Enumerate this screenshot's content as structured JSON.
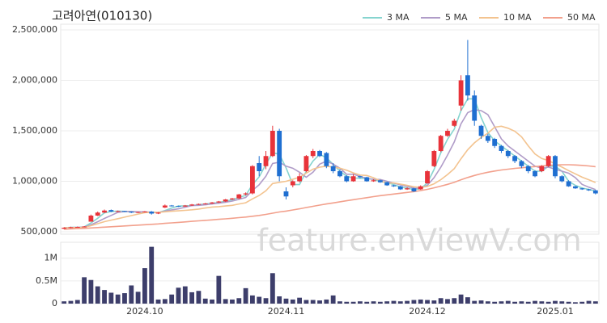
{
  "chart_data": {
    "type": "candlestick",
    "title": "고려아연(010130)",
    "watermark": "feature.enViewV.com",
    "up_color": "#e8333a",
    "down_color": "#1f6fd1",
    "volume_color": "#3d3e6b",
    "grid": true,
    "legend": "top-right",
    "categories": [
      null,
      null,
      null,
      null,
      null,
      null,
      null,
      null,
      null,
      null,
      null,
      null,
      "2024.10",
      null,
      null,
      null,
      null,
      null,
      null,
      null,
      null,
      null,
      null,
      null,
      null,
      null,
      null,
      null,
      null,
      null,
      null,
      null,
      null,
      "2024.11",
      null,
      null,
      null,
      null,
      null,
      null,
      null,
      null,
      null,
      null,
      null,
      null,
      null,
      null,
      null,
      null,
      null,
      null,
      null,
      null,
      "2024.12",
      null,
      null,
      null,
      null,
      null,
      null,
      null,
      null,
      null,
      null,
      null,
      null,
      null,
      null,
      null,
      null,
      null,
      null,
      "2025.01",
      null,
      null,
      null,
      null,
      null,
      null
    ],
    "ohlc": [
      [
        530000,
        545000,
        525000,
        540000
      ],
      [
        540000,
        550000,
        535000,
        545000
      ],
      [
        545000,
        552000,
        540000,
        548000
      ],
      [
        548000,
        556000,
        545000,
        552000
      ],
      [
        600000,
        670000,
        600000,
        660000
      ],
      [
        660000,
        700000,
        655000,
        690000
      ],
      [
        690000,
        720000,
        685000,
        710000
      ],
      [
        715000,
        720000,
        695000,
        700000
      ],
      [
        700000,
        710000,
        695000,
        705000
      ],
      [
        705000,
        708000,
        695000,
        700000
      ],
      [
        700000,
        702000,
        685000,
        690000
      ],
      [
        690000,
        700000,
        685000,
        695000
      ],
      [
        695000,
        705000,
        690000,
        700000
      ],
      [
        700000,
        705000,
        670000,
        680000
      ],
      [
        680000,
        695000,
        675000,
        690000
      ],
      [
        740000,
        770000,
        735000,
        760000
      ],
      [
        760000,
        765000,
        750000,
        755000
      ],
      [
        755000,
        758000,
        745000,
        750000
      ],
      [
        750000,
        765000,
        748000,
        760000
      ],
      [
        760000,
        775000,
        755000,
        770000
      ],
      [
        770000,
        780000,
        765000,
        775000
      ],
      [
        775000,
        785000,
        770000,
        780000
      ],
      [
        780000,
        795000,
        775000,
        790000
      ],
      [
        790000,
        805000,
        785000,
        800000
      ],
      [
        800000,
        825000,
        795000,
        820000
      ],
      [
        820000,
        835000,
        815000,
        830000
      ],
      [
        830000,
        875000,
        825000,
        870000
      ],
      [
        870000,
        890000,
        860000,
        880000
      ],
      [
        880000,
        1160000,
        870000,
        1150000
      ],
      [
        1180000,
        1250000,
        1050000,
        1100000
      ],
      [
        1150000,
        1300000,
        1120000,
        1250000
      ],
      [
        1250000,
        1550000,
        1240000,
        1500000
      ],
      [
        1500000,
        1520000,
        1000000,
        1050000
      ],
      [
        900000,
        940000,
        820000,
        850000
      ],
      [
        960000,
        1010000,
        940000,
        1000000
      ],
      [
        1000000,
        1080000,
        990000,
        1050000
      ],
      [
        1100000,
        1260000,
        1090000,
        1250000
      ],
      [
        1250000,
        1320000,
        1230000,
        1300000
      ],
      [
        1300000,
        1310000,
        1240000,
        1250000
      ],
      [
        1280000,
        1290000,
        1130000,
        1150000
      ],
      [
        1150000,
        1180000,
        1080000,
        1100000
      ],
      [
        1100000,
        1120000,
        1040000,
        1050000
      ],
      [
        1050000,
        1060000,
        990000,
        1000000
      ],
      [
        1000000,
        1070000,
        995000,
        1050000
      ],
      [
        1050000,
        1055000,
        1030000,
        1040000
      ],
      [
        1040000,
        1045000,
        995000,
        1000000
      ],
      [
        1000000,
        1020000,
        995000,
        1010000
      ],
      [
        1010000,
        1015000,
        985000,
        990000
      ],
      [
        990000,
        995000,
        955000,
        960000
      ],
      [
        960000,
        965000,
        945000,
        950000
      ],
      [
        950000,
        955000,
        915000,
        920000
      ],
      [
        920000,
        940000,
        915000,
        930000
      ],
      [
        930000,
        935000,
        895000,
        900000
      ],
      [
        920000,
        960000,
        915000,
        950000
      ],
      [
        980000,
        1110000,
        975000,
        1100000
      ],
      [
        1150000,
        1310000,
        1140000,
        1300000
      ],
      [
        1300000,
        1460000,
        1290000,
        1450000
      ],
      [
        1450000,
        1520000,
        1440000,
        1500000
      ],
      [
        1550000,
        1620000,
        1540000,
        1600000
      ],
      [
        1750000,
        2050000,
        1700000,
        2000000
      ],
      [
        2050000,
        2400000,
        1800000,
        1850000
      ],
      [
        1850000,
        1900000,
        1550000,
        1600000
      ],
      [
        1550000,
        1560000,
        1420000,
        1450000
      ],
      [
        1450000,
        1470000,
        1380000,
        1400000
      ],
      [
        1420000,
        1430000,
        1330000,
        1350000
      ],
      [
        1350000,
        1360000,
        1280000,
        1300000
      ],
      [
        1300000,
        1310000,
        1230000,
        1250000
      ],
      [
        1250000,
        1260000,
        1180000,
        1200000
      ],
      [
        1200000,
        1210000,
        1130000,
        1150000
      ],
      [
        1150000,
        1160000,
        1080000,
        1100000
      ],
      [
        1100000,
        1110000,
        1040000,
        1050000
      ],
      [
        1100000,
        1160000,
        1090000,
        1150000
      ],
      [
        1150000,
        1260000,
        1140000,
        1250000
      ],
      [
        1250000,
        1260000,
        1030000,
        1050000
      ],
      [
        1050000,
        1060000,
        990000,
        1000000
      ],
      [
        1000000,
        1010000,
        945000,
        950000
      ],
      [
        950000,
        955000,
        925000,
        930000
      ],
      [
        930000,
        935000,
        915000,
        920000
      ],
      [
        920000,
        925000,
        905000,
        910000
      ],
      [
        910000,
        915000,
        870000,
        880000
      ]
    ],
    "ma": [
      {
        "name": "3 MA",
        "color": "#86d4cf",
        "values": [
          540000,
          543000,
          544000,
          548000,
          587000,
          634000,
          687000,
          700000,
          705000,
          702000,
          698000,
          695000,
          695000,
          692000,
          690000,
          710000,
          735000,
          755000,
          755000,
          760000,
          768000,
          775000,
          782000,
          790000,
          803000,
          817000,
          840000,
          860000,
          967000,
          1043000,
          1167000,
          1283000,
          1267000,
          1133000,
          967000,
          967000,
          1100000,
          1200000,
          1267000,
          1233000,
          1167000,
          1100000,
          1050000,
          1033000,
          1030000,
          1030000,
          1017000,
          1000000,
          987000,
          967000,
          943000,
          933000,
          917000,
          927000,
          983000,
          1117000,
          1283000,
          1417000,
          1517000,
          1700000,
          1817000,
          1817000,
          1633000,
          1483000,
          1400000,
          1350000,
          1300000,
          1250000,
          1200000,
          1150000,
          1100000,
          1100000,
          1150000,
          1150000,
          1100000,
          1000000,
          960000,
          933000,
          920000,
          903000
        ]
      },
      {
        "name": "5 MA",
        "color": "#b09cc8",
        "values": [
          540000,
          542000,
          544000,
          546000,
          569000,
          599000,
          632000,
          662000,
          693000,
          701000,
          701000,
          698000,
          698000,
          694000,
          691000,
          705000,
          717000,
          727000,
          743000,
          759000,
          762000,
          767000,
          775000,
          783000,
          793000,
          804000,
          822000,
          840000,
          910000,
          966000,
          1050000,
          1176000,
          1190000,
          1150000,
          1130000,
          1090000,
          1040000,
          1090000,
          1170000,
          1200000,
          1170000,
          1130000,
          1070000,
          1070000,
          1048000,
          1028000,
          1020000,
          1018000,
          1000000,
          982000,
          966000,
          950000,
          932000,
          930000,
          960000,
          1036000,
          1140000,
          1260000,
          1390000,
          1570000,
          1680000,
          1710000,
          1700000,
          1660000,
          1540000,
          1420000,
          1350000,
          1300000,
          1250000,
          1200000,
          1150000,
          1130000,
          1140000,
          1120000,
          1100000,
          1080000,
          1036000,
          970000,
          942000,
          918000
        ]
      },
      {
        "name": "10 MA",
        "color": "#f3c38f",
        "values": [
          540000,
          541000,
          542000,
          543000,
          560000,
          580000,
          600000,
          615000,
          630000,
          645000,
          660000,
          675000,
          690000,
          693000,
          692000,
          698000,
          703000,
          707000,
          712000,
          718000,
          725000,
          735000,
          745000,
          749000,
          755000,
          762000,
          775000,
          787000,
          826000,
          859000,
          906000,
          978000,
          990000,
          1000000,
          1020000,
          1040000,
          1080000,
          1120000,
          1140000,
          1150000,
          1140000,
          1130000,
          1110000,
          1083000,
          1062000,
          1058000,
          1035000,
          1004000,
          980000,
          985000,
          972000,
          960000,
          946000,
          940000,
          949000,
          975000,
          1016000,
          1067000,
          1126000,
          1223000,
          1313000,
          1381000,
          1434000,
          1476000,
          1536000,
          1546000,
          1526000,
          1496000,
          1441000,
          1351000,
          1271000,
          1226000,
          1206000,
          1171000,
          1141000,
          1106000,
          1074000,
          1041000,
          1015000,
          988000
        ]
      },
      {
        "name": "50 MA",
        "color": "#f2a08c",
        "values": [
          525000,
          528000,
          531000,
          534000,
          538000,
          542000,
          546000,
          550000,
          554000,
          558000,
          562000,
          566000,
          570000,
          574000,
          578000,
          583000,
          588000,
          593000,
          598000,
          603000,
          608000,
          613000,
          618000,
          623000,
          628000,
          634000,
          640000,
          646000,
          654000,
          662000,
          672000,
          684000,
          696000,
          705000,
          716000,
          727000,
          740000,
          752000,
          764000,
          775000,
          786000,
          797000,
          807000,
          818000,
          828000,
          838000,
          848000,
          858000,
          866000,
          874000,
          882000,
          890000,
          898000,
          908000,
          920000,
          935000,
          952000,
          970000,
          990000,
          1015000,
          1038000,
          1058000,
          1075000,
          1090000,
          1102000,
          1112000,
          1120000,
          1128000,
          1134000,
          1140000,
          1146000,
          1152000,
          1158000,
          1162000,
          1164000,
          1164000,
          1162000,
          1158000,
          1152000,
          1145000
        ]
      }
    ],
    "volume": [
      50000,
      60000,
      80000,
      580000,
      520000,
      380000,
      300000,
      240000,
      200000,
      230000,
      400000,
      260000,
      780000,
      1250000,
      90000,
      100000,
      200000,
      350000,
      380000,
      250000,
      280000,
      110000,
      90000,
      610000,
      100000,
      90000,
      120000,
      340000,
      180000,
      150000,
      120000,
      670000,
      160000,
      110000,
      90000,
      130000,
      80000,
      80000,
      70000,
      90000,
      180000,
      50000,
      40000,
      40000,
      50000,
      40000,
      50000,
      40000,
      50000,
      60000,
      50000,
      60000,
      80000,
      90000,
      80000,
      70000,
      120000,
      100000,
      120000,
      200000,
      140000,
      60000,
      70000,
      50000,
      40000,
      50000,
      60000,
      40000,
      50000,
      40000,
      60000,
      50000,
      40000,
      60000,
      50000,
      40000,
      30000,
      40000,
      60000,
      50000
    ],
    "ylim": [
      476000,
      2556000
    ],
    "yticks": [
      {
        "value": 500000,
        "label": "500,000"
      },
      {
        "value": 1000000,
        "label": "1,000,000"
      },
      {
        "value": 1500000,
        "label": "1,500,000"
      },
      {
        "value": 2000000,
        "label": "2,000,000"
      },
      {
        "value": 2500000,
        "label": "2,500,000"
      }
    ],
    "volume_ylim": [
      0,
      1350000
    ],
    "volume_yticks": [
      {
        "value": 0,
        "label": "0"
      },
      {
        "value": 500000,
        "label": "0.5M"
      },
      {
        "value": 1000000,
        "label": "1M"
      }
    ]
  }
}
